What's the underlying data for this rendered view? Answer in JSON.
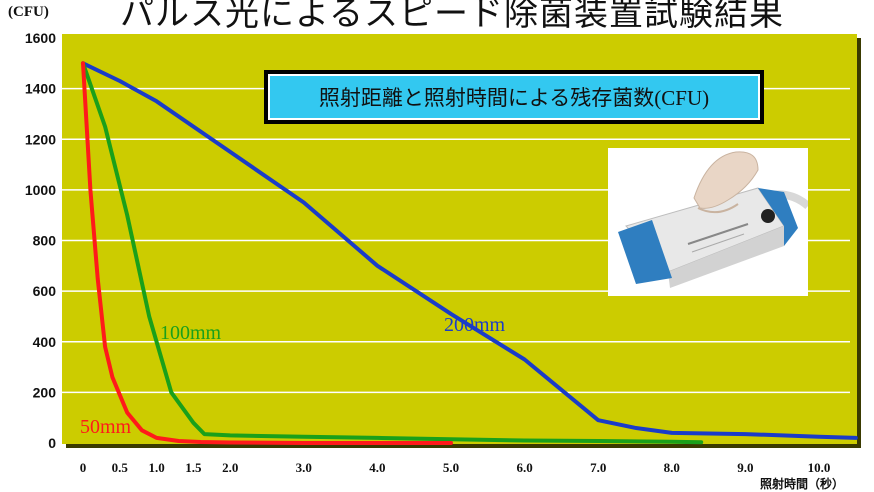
{
  "page": {
    "title": "パルス光によるスピード除菌装置試験結果",
    "y_unit": "(CFU)",
    "x_axis_title": "照射時間（秒）"
  },
  "legend_box": {
    "text": "照射距離と照射時間による残存菌数(CFU)"
  },
  "colors": {
    "plot_bg": "#cccc00",
    "grid": "#ffffff",
    "series_50mm": "#ff1a1a",
    "series_100mm": "#1aa01a",
    "series_200mm": "#1a3cc8",
    "legend_bg": "#33c8f0"
  },
  "chart_data": {
    "type": "line",
    "title": "照射距離と照射時間による残存菌数(CFU)",
    "ylabel": "(CFU)",
    "xlabel": "照射時間（秒）",
    "ylim": [
      0,
      1600
    ],
    "xlim": [
      0,
      10.5
    ],
    "grid": true,
    "y_ticks": [
      "0",
      "200",
      "400",
      "600",
      "800",
      "1000",
      "1200",
      "1400",
      "1600"
    ],
    "x_ticks": [
      {
        "label": "0",
        "value": 0
      },
      {
        "label": "0.5",
        "value": 0.5
      },
      {
        "label": "1.0",
        "value": 1.0
      },
      {
        "label": "1.5",
        "value": 1.5
      },
      {
        "label": "2.0",
        "value": 2.0
      },
      {
        "label": "3.0",
        "value": 3.0
      },
      {
        "label": "4.0",
        "value": 4.0
      },
      {
        "label": "5.0",
        "value": 5.0
      },
      {
        "label": "6.0",
        "value": 6.0
      },
      {
        "label": "7.0",
        "value": 7.0
      },
      {
        "label": "8.0",
        "value": 8.0
      },
      {
        "label": "9.0",
        "value": 9.0
      },
      {
        "label": "10.0",
        "value": 10.0
      }
    ],
    "series": [
      {
        "name": "50mm",
        "x": [
          0,
          0.1,
          0.2,
          0.3,
          0.4,
          0.6,
          0.8,
          1.0,
          1.3,
          1.6,
          2.0,
          3.0,
          4.0,
          5.0
        ],
        "values": [
          1500,
          1000,
          650,
          380,
          260,
          120,
          50,
          20,
          8,
          4,
          2,
          0,
          0,
          0
        ]
      },
      {
        "name": "100mm",
        "x": [
          0,
          0.3,
          0.6,
          0.9,
          1.2,
          1.5,
          1.65,
          2.0,
          3.0,
          4.0,
          5.0,
          6.0,
          7.0,
          8.0,
          8.4
        ],
        "values": [
          1500,
          1250,
          900,
          500,
          200,
          80,
          35,
          30,
          25,
          20,
          15,
          10,
          8,
          5,
          3
        ]
      },
      {
        "name": "200mm",
        "x": [
          0,
          0.5,
          1.0,
          2.0,
          3.0,
          4.0,
          5.0,
          6.0,
          7.0,
          7.5,
          8.0,
          9.0,
          10.0,
          10.5
        ],
        "values": [
          1500,
          1430,
          1350,
          1150,
          950,
          700,
          510,
          330,
          90,
          60,
          40,
          35,
          25,
          20
        ]
      }
    ]
  }
}
